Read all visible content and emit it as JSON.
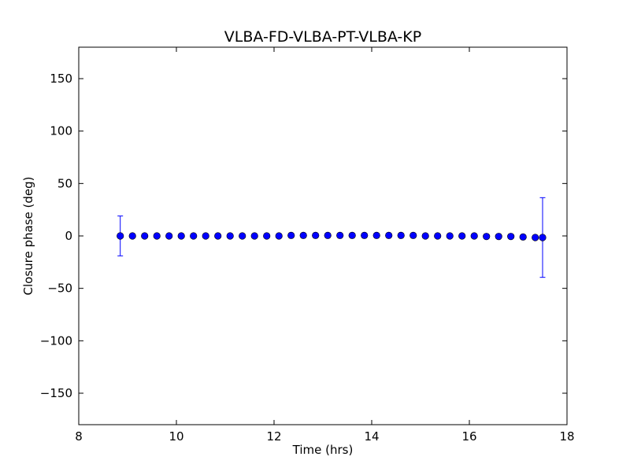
{
  "chart_data": {
    "type": "scatter",
    "title": "VLBA-FD-VLBA-PT-VLBA-KP",
    "xlabel": "Time (hrs)",
    "ylabel": "Closure phase (deg)",
    "xlim": [
      8,
      18
    ],
    "ylim": [
      -180,
      180
    ],
    "xticks": [
      8,
      10,
      12,
      14,
      16,
      18
    ],
    "xtick_labels": [
      "8",
      "10",
      "12",
      "14",
      "16",
      "18"
    ],
    "yticks": [
      -150,
      -100,
      -50,
      0,
      50,
      100,
      150
    ],
    "ytick_labels": [
      "−150",
      "−100",
      "−50",
      "0",
      "50",
      "100",
      "150"
    ],
    "grid": false,
    "marker_color": "#0000ff",
    "errorbar_color": "#0000ff",
    "series": [
      {
        "x": [
          8.85,
          9.1,
          9.35,
          9.6,
          9.85,
          10.1,
          10.35,
          10.6,
          10.85,
          11.1,
          11.35,
          11.6,
          11.85,
          12.1,
          12.35,
          12.6,
          12.85,
          13.1,
          13.35,
          13.6,
          13.85,
          14.1,
          14.35,
          14.6,
          14.85,
          15.1,
          15.35,
          15.6,
          15.85,
          16.1,
          16.35,
          16.6,
          16.85,
          17.1,
          17.35,
          17.5
        ],
        "y": [
          0,
          0,
          0,
          0,
          0,
          0,
          0,
          0,
          0,
          0,
          0,
          0,
          0,
          0,
          0.5,
          0.5,
          0.5,
          0.5,
          0.5,
          0.5,
          0.5,
          0.5,
          0.5,
          0.5,
          0.5,
          0,
          0,
          0,
          0,
          0,
          -0.5,
          -0.5,
          -0.5,
          -1,
          -1.5,
          -1.5
        ],
        "yerr": [
          19,
          0,
          0,
          0,
          0,
          0,
          0,
          0,
          0,
          0,
          0,
          0,
          0,
          0,
          0,
          0,
          0,
          0,
          0,
          0,
          0,
          0,
          0,
          0,
          0,
          0,
          0,
          0,
          0,
          0,
          0,
          0,
          0,
          0,
          0,
          38
        ]
      }
    ]
  }
}
